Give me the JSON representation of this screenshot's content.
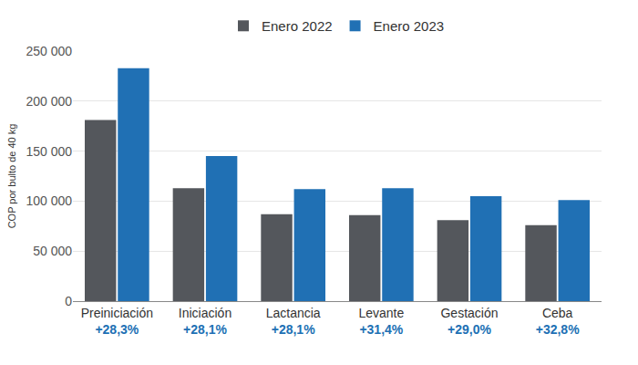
{
  "chart_data": {
    "type": "bar",
    "y_label": "COP por bulto de 40 kg",
    "categories": [
      "Preiniciación",
      "Iniciación",
      "Lactancia",
      "Levante",
      "Gestación",
      "Ceba"
    ],
    "annotations": [
      "+28,3%",
      "+28,1%",
      "+28,1%",
      "+31,4%",
      "+29,0%",
      "+32,8%"
    ],
    "series": [
      {
        "name": "Enero 2022",
        "color": "#54575c",
        "values": [
          181000,
          113000,
          87000,
          86000,
          81000,
          76000
        ]
      },
      {
        "name": "Enero 2023",
        "color": "#2070b4",
        "values": [
          233000,
          145000,
          112000,
          113000,
          105000,
          101000
        ]
      }
    ],
    "ylim": [
      0,
      250000
    ],
    "yticks": [
      0,
      {
        "value": 50000,
        "label": "50 000"
      },
      {
        "value": 100000,
        "label": "100 000"
      },
      {
        "value": 150000,
        "label": "150 000"
      },
      {
        "value": 200000,
        "label": "200 000"
      },
      {
        "value": 250000,
        "label": "250 000"
      }
    ],
    "grid": true,
    "legend": "top"
  }
}
